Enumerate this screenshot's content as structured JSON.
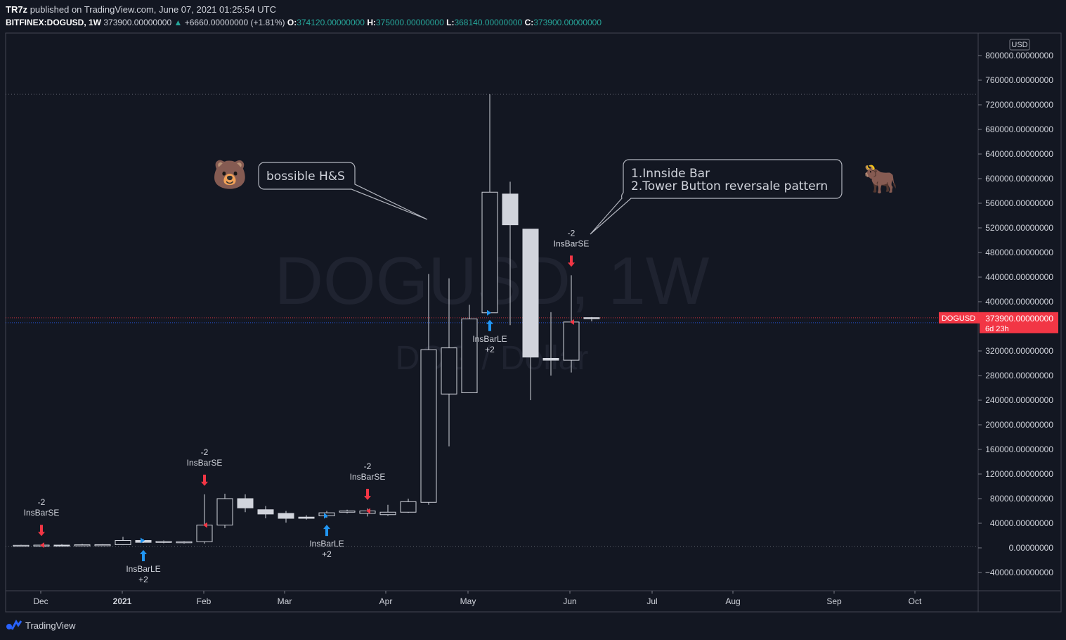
{
  "header": {
    "publisher": "TR7z",
    "published_text": "published on TradingView.com, June 07, 2021 01:25:54 UTC",
    "symbol": "BITFINEX:DOGUSD, 1W",
    "last": "373900.00000000",
    "change": "+6660.00000000 (+1.81%)",
    "o_label": "O:",
    "o": "374120.00000000",
    "h_label": "H:",
    "h": "375000.00000000",
    "l_label": "L:",
    "l": "368140.00000000",
    "c_label": "C:",
    "c": "373900.00000000"
  },
  "watermark": {
    "line1": "DOGUSD, 1W",
    "line2": "DOG / Dollar"
  },
  "footer": {
    "brand": "TradingView"
  },
  "colors": {
    "background": "#131722",
    "price_label": "#f23645",
    "le_arrow": "#2196f3",
    "se_arrow": "#f23645",
    "grid_line": "#2a2e39"
  },
  "chart_data": {
    "type": "candlestick",
    "currency": "USD",
    "price_axis_ticks": [
      "-40000.00000000",
      "0.00000000",
      "40000.00000000",
      "80000.00000000",
      "120000.00000000",
      "160000.00000000",
      "200000.00000000",
      "240000.00000000",
      "280000.00000000",
      "320000.00000000",
      "373900.00000000",
      "400000.00000000",
      "440000.00000000",
      "480000.00000000",
      "520000.00000000",
      "560000.00000000",
      "600000.00000000",
      "640000.00000000",
      "680000.00000000",
      "720000.00000000",
      "760000.00000000",
      "800000.00000000"
    ],
    "ylim": [
      -60000,
      830000
    ],
    "time_axis_ticks": [
      "Dec",
      "2021",
      "Feb",
      "Mar",
      "Apr",
      "May",
      "Jun",
      "Jul",
      "Aug",
      "Sep",
      "Oct"
    ],
    "candles": [
      {
        "w": 0,
        "o": 4000,
        "h": 5000,
        "l": 3500,
        "c": 4200
      },
      {
        "w": 1,
        "o": 4200,
        "h": 5500,
        "l": 3800,
        "c": 4500
      },
      {
        "w": 2,
        "o": 4500,
        "h": 6000,
        "l": 3800,
        "c": 4300
      },
      {
        "w": 3,
        "o": 4300,
        "h": 6500,
        "l": 4000,
        "c": 5000
      },
      {
        "w": 4,
        "o": 5000,
        "h": 6000,
        "l": 4500,
        "c": 5200
      },
      {
        "w": 5,
        "o": 5200,
        "h": 18000,
        "l": 4500,
        "c": 12000
      },
      {
        "w": 6,
        "o": 12000,
        "h": 14000,
        "l": 8000,
        "c": 9000
      },
      {
        "w": 7,
        "o": 9000,
        "h": 12000,
        "l": 7500,
        "c": 10500
      },
      {
        "w": 8,
        "o": 9500,
        "h": 11000,
        "l": 7000,
        "c": 10000
      },
      {
        "w": 9,
        "o": 10000,
        "h": 87000,
        "l": 7000,
        "c": 37000
      },
      {
        "w": 10,
        "o": 37000,
        "h": 88000,
        "l": 32000,
        "c": 80000
      },
      {
        "w": 11,
        "o": 80000,
        "h": 87000,
        "l": 58000,
        "c": 65000
      },
      {
        "w": 12,
        "o": 62000,
        "h": 68000,
        "l": 48000,
        "c": 55000
      },
      {
        "w": 13,
        "o": 56000,
        "h": 60000,
        "l": 41000,
        "c": 48000
      },
      {
        "w": 14,
        "o": 50000,
        "h": 53000,
        "l": 46000,
        "c": 48000
      },
      {
        "w": 15,
        "o": 52000,
        "h": 60000,
        "l": 49000,
        "c": 57000
      },
      {
        "w": 16,
        "o": 58000,
        "h": 62000,
        "l": 56000,
        "c": 60000
      },
      {
        "w": 17,
        "o": 56000,
        "h": 64000,
        "l": 51000,
        "c": 60000
      },
      {
        "w": 18,
        "o": 54000,
        "h": 70000,
        "l": 52000,
        "c": 58000
      },
      {
        "w": 19,
        "o": 58000,
        "h": 80000,
        "l": 57000,
        "c": 75000
      },
      {
        "w": 20,
        "o": 74000,
        "h": 445000,
        "l": 70000,
        "c": 322000
      },
      {
        "w": 21,
        "o": 250000,
        "h": 438000,
        "l": 165000,
        "c": 325000
      },
      {
        "w": 22,
        "o": 252000,
        "h": 395000,
        "l": 252000,
        "c": 372000
      },
      {
        "w": 23,
        "o": 382000,
        "h": 737000,
        "l": 382000,
        "c": 578000
      },
      {
        "w": 24,
        "o": 575000,
        "h": 595000,
        "l": 362000,
        "c": 525000
      },
      {
        "w": 25,
        "o": 518000,
        "h": 518000,
        "l": 240000,
        "c": 310000
      },
      {
        "w": 26,
        "o": 308000,
        "h": 383000,
        "l": 280000,
        "c": 305000
      },
      {
        "w": 27,
        "o": 305000,
        "h": 443000,
        "l": 285000,
        "c": 367000
      },
      {
        "w": 28,
        "o": 374120,
        "h": 375000,
        "l": 368140,
        "c": 373900
      }
    ],
    "signals": [
      {
        "w": 1,
        "type": "SE",
        "label": "InsBarSE",
        "qty": "-2"
      },
      {
        "w": 6,
        "type": "LE",
        "label": "InsBarLE",
        "qty": "+2"
      },
      {
        "w": 9,
        "type": "SE",
        "label": "InsBarSE",
        "qty": "-2"
      },
      {
        "w": 15,
        "type": "LE",
        "label": "InsBarLE",
        "qty": "+2"
      },
      {
        "w": 17,
        "type": "SE",
        "label": "InsBarSE",
        "qty": "-2"
      },
      {
        "w": 23,
        "type": "LE",
        "label": "InsBarLE",
        "qty": "+2"
      },
      {
        "w": 27,
        "type": "SE",
        "label": "InsBarSE",
        "qty": "-2"
      }
    ],
    "last_price_label": {
      "symbol": "DOGUSD",
      "price": "373900.00000000",
      "countdown": "6d 23h"
    },
    "horizontal_lines": [
      {
        "price": 737000,
        "style": "dotted"
      },
      {
        "price": 2000,
        "style": "dotted"
      }
    ],
    "callouts": [
      {
        "id": "hs",
        "lines": [
          "bossible H&S"
        ]
      },
      {
        "id": "pattern",
        "lines": [
          "1.Innside Bar",
          "2.Tower Button reversale pattern"
        ]
      }
    ],
    "emojis": [
      {
        "id": "bear",
        "char": "🐻"
      },
      {
        "id": "bull",
        "char": "🐂"
      }
    ]
  }
}
